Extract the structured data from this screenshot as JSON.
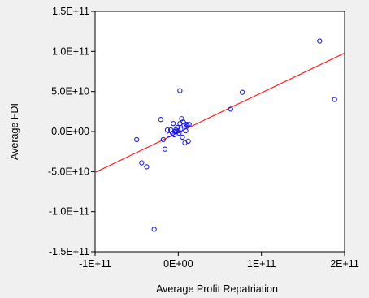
{
  "chart_data": {
    "type": "scatter",
    "title": "",
    "xlabel": "Average Profit Repatriation",
    "ylabel": "Average FDI",
    "xlim": [
      -100000000000.0,
      200000000000.0
    ],
    "ylim": [
      -150000000000.0,
      150000000000.0
    ],
    "x_ticks": [
      {
        "value": -100000000000.0,
        "label": "-1E+11"
      },
      {
        "value": 0,
        "label": "0E+00"
      },
      {
        "value": 100000000000.0,
        "label": "1E+11"
      },
      {
        "value": 200000000000.0,
        "label": "2E+11"
      }
    ],
    "y_ticks": [
      {
        "value": 150000000000.0,
        "label": "1.5E+11"
      },
      {
        "value": 100000000000.0,
        "label": "1.0E+11"
      },
      {
        "value": 50000000000.0,
        "label": "5.0E+10"
      },
      {
        "value": 0,
        "label": "0.0E+00"
      },
      {
        "value": -50000000000.0,
        "label": "-5.0E+10"
      },
      {
        "value": -100000000000.0,
        "label": "-1.0E+11"
      },
      {
        "value": -150000000000.0,
        "label": "-1.5E+11"
      }
    ],
    "grid": false,
    "legend": "none",
    "colors": {
      "points": "#2020e0",
      "fit_line": "#ff2020",
      "plot_background": "#ffffff",
      "figure_background": "#f0f0f0"
    },
    "fit_line": {
      "x": [
        -100000000000.0,
        200000000000.0
      ],
      "y": [
        -51000000000.0,
        98000000000.0
      ]
    },
    "series": [
      {
        "points": [
          [
            170000000000.0,
            113000000000.0
          ],
          [
            188000000000.0,
            40000000000.0
          ],
          [
            77000000000.0,
            49000000000.0
          ],
          [
            63000000000.0,
            28000000000.0
          ],
          [
            2000000000.0,
            51000000000.0
          ],
          [
            -50000000000.0,
            -10000000000.0
          ],
          [
            -44000000000.0,
            -39000000000.0
          ],
          [
            -38000000000.0,
            -44000000000.0
          ],
          [
            -29000000000.0,
            -122000000000.0
          ],
          [
            -21000000000.0,
            15000000000.0
          ],
          [
            -18000000000.0,
            -10000000000.0
          ],
          [
            -16000000000.0,
            -22000000000.0
          ],
          [
            -13000000000.0,
            2000000000.0
          ],
          [
            -11000000000.0,
            -4000000000.0
          ],
          [
            -9000000000.0,
            2000000000.0
          ],
          [
            -7000000000.0,
            -2000000000.0
          ],
          [
            -6000000000.0,
            10000000000.0
          ],
          [
            -5000000000.0,
            -4000000000.0
          ],
          [
            -4000000000.0,
            0
          ],
          [
            -3000000000.0,
            2000000000.0
          ],
          [
            -2000000000.0,
            0
          ],
          [
            -1000000000.0,
            5000000000.0
          ],
          [
            0,
            1000000000.0
          ],
          [
            1000000000.0,
            -2000000000.0
          ],
          [
            2000000000.0,
            10000000000.0
          ],
          [
            3000000000.0,
            3000000000.0
          ],
          [
            4000000000.0,
            16000000000.0
          ],
          [
            5000000000.0,
            -7000000000.0
          ],
          [
            6000000000.0,
            12000000000.0
          ],
          [
            7000000000.0,
            8000000000.0
          ],
          [
            8000000000.0,
            -14000000000.0
          ],
          [
            9000000000.0,
            1000000000.0
          ],
          [
            10000000000.0,
            9000000000.0
          ],
          [
            11000000000.0,
            7000000000.0
          ],
          [
            12000000000.0,
            -12000000000.0
          ],
          [
            13000000000.0,
            9000000000.0
          ]
        ]
      }
    ]
  }
}
